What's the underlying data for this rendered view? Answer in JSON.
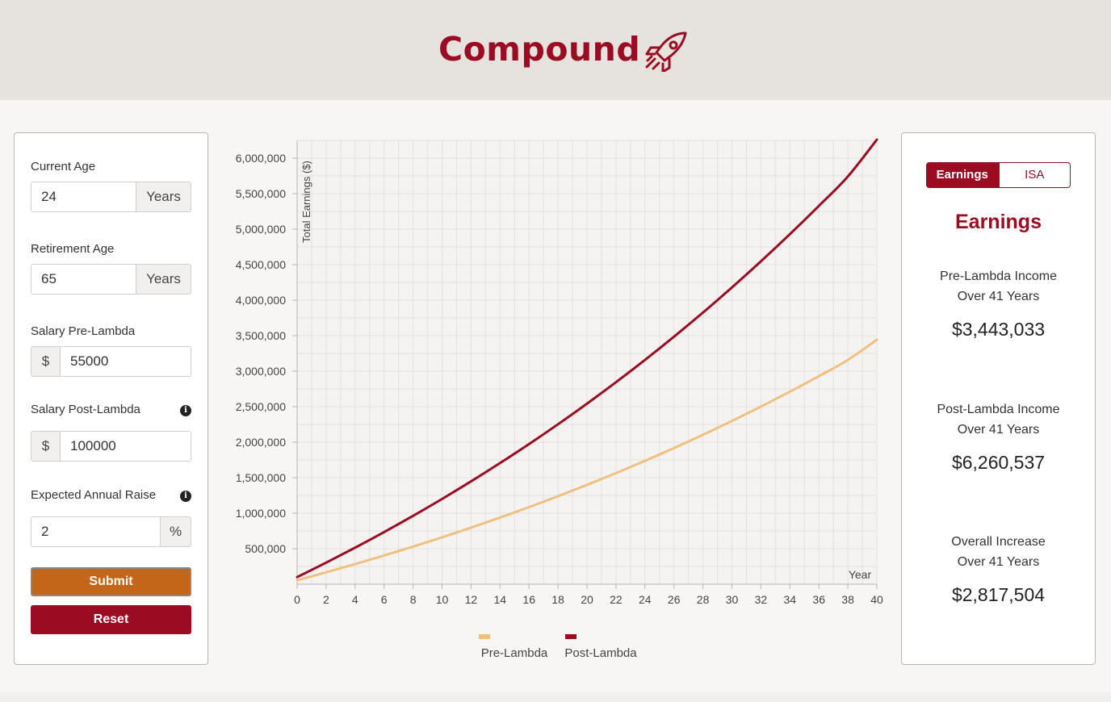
{
  "app": {
    "title": "Compound",
    "logo_icon": "rocket-icon",
    "brand_color": "#9b0b22",
    "accent_color": "#c4661a"
  },
  "form": {
    "current_age": {
      "label": "Current Age",
      "value": "24",
      "suffix": "Years"
    },
    "retirement_age": {
      "label": "Retirement Age",
      "value": "65",
      "suffix": "Years"
    },
    "salary_pre": {
      "label": "Salary Pre-Lambda",
      "prefix": "$",
      "value": "55000"
    },
    "salary_post": {
      "label": "Salary Post-Lambda",
      "prefix": "$",
      "value": "100000",
      "info_icon": "i"
    },
    "annual_raise": {
      "label": "Expected Annual Raise",
      "value": "2",
      "suffix": "%",
      "info_icon": "i"
    },
    "submit_label": "Submit",
    "reset_label": "Reset"
  },
  "results": {
    "tabs": [
      "Earnings",
      "ISA"
    ],
    "active_tab": "Earnings",
    "heading": "Earnings",
    "pre": {
      "label_line1": "Pre-Lambda Income",
      "label_line2": "Over 41 Years",
      "value": "$3,443,033"
    },
    "post": {
      "label_line1": "Post-Lambda Income",
      "label_line2": "Over 41 Years",
      "value": "$6,260,537"
    },
    "increase": {
      "label_line1": "Overall Increase",
      "label_line2": "Over 41 Years",
      "value": "$2,817,504"
    }
  },
  "chart_data": {
    "type": "line",
    "xlabel": "Year",
    "ylabel": "Total Earnings ($)",
    "xlim": [
      0,
      40
    ],
    "ylim": [
      0,
      6250000
    ],
    "x_ticks": [
      0,
      2,
      4,
      6,
      8,
      10,
      12,
      14,
      16,
      18,
      20,
      22,
      24,
      26,
      28,
      30,
      32,
      34,
      36,
      38,
      40
    ],
    "y_ticks": [
      500000,
      1000000,
      1500000,
      2000000,
      2500000,
      3000000,
      3500000,
      4000000,
      4500000,
      5000000,
      5500000,
      6000000
    ],
    "y_tick_labels": [
      "500,000",
      "1,000,000",
      "1,500,000",
      "2,000,000",
      "2,500,000",
      "3,000,000",
      "3,500,000",
      "4,000,000",
      "4,500,000",
      "5,000,000",
      "5,500,000",
      "6,000,000"
    ],
    "grid": true,
    "legend_position": "bottom",
    "x": [
      0,
      2,
      4,
      6,
      8,
      10,
      12,
      14,
      16,
      18,
      20,
      22,
      24,
      26,
      28,
      30,
      32,
      34,
      36,
      38,
      40
    ],
    "series": [
      {
        "name": "Pre-Lambda",
        "color": "#efc07f",
        "values": [
          55000,
          166650,
          282810,
          403660,
          529410,
          660250,
          796380,
          938020,
          1085400,
          1238700,
          1398300,
          1564300,
          1737000,
          1916700,
          2103700,
          2298200,
          2500600,
          2711100,
          2930200,
          3158100,
          3443033
        ]
      },
      {
        "name": "Post-Lambda",
        "color": "#9b0b22",
        "values": [
          100000,
          303000,
          514200,
          733900,
          962600,
          1200400,
          1447900,
          1705500,
          1973400,
          2252200,
          2542400,
          2844200,
          3158200,
          3485000,
          3824900,
          4178500,
          4546500,
          4929300,
          5327600,
          5742000,
          6260537
        ]
      }
    ]
  }
}
